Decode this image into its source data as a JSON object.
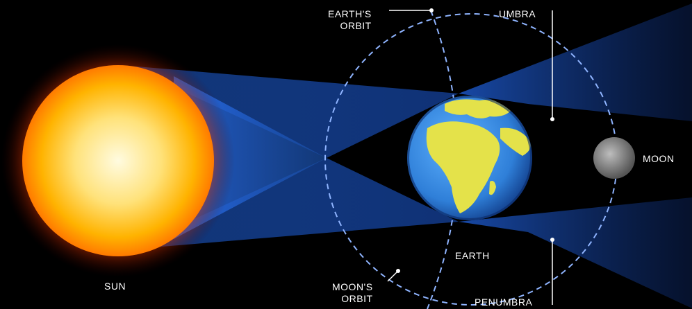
{
  "labels": {
    "sun": "SUN",
    "earth": "EARTH",
    "moon": "MOON",
    "umbra": "UMBRA",
    "penumbra": "PENUMBRA",
    "earths_orbit_line1": "EARTH'S",
    "earths_orbit_line2": "ORBIT",
    "moons_orbit_line1": "MOON'S",
    "moons_orbit_line2": "ORBIT"
  },
  "colors": {
    "background": "#000000",
    "sun_core": "#fff6c8",
    "sun_mid": "#ffb300",
    "sun_edge": "#ff5a00",
    "shadow_blue": "#1f5fd6",
    "ocean": "#2f7fd8",
    "land": "#e4e24a",
    "moon": "#8a8a8a",
    "orbit_line": "#8fb4ff",
    "label_text": "#ffffff"
  }
}
